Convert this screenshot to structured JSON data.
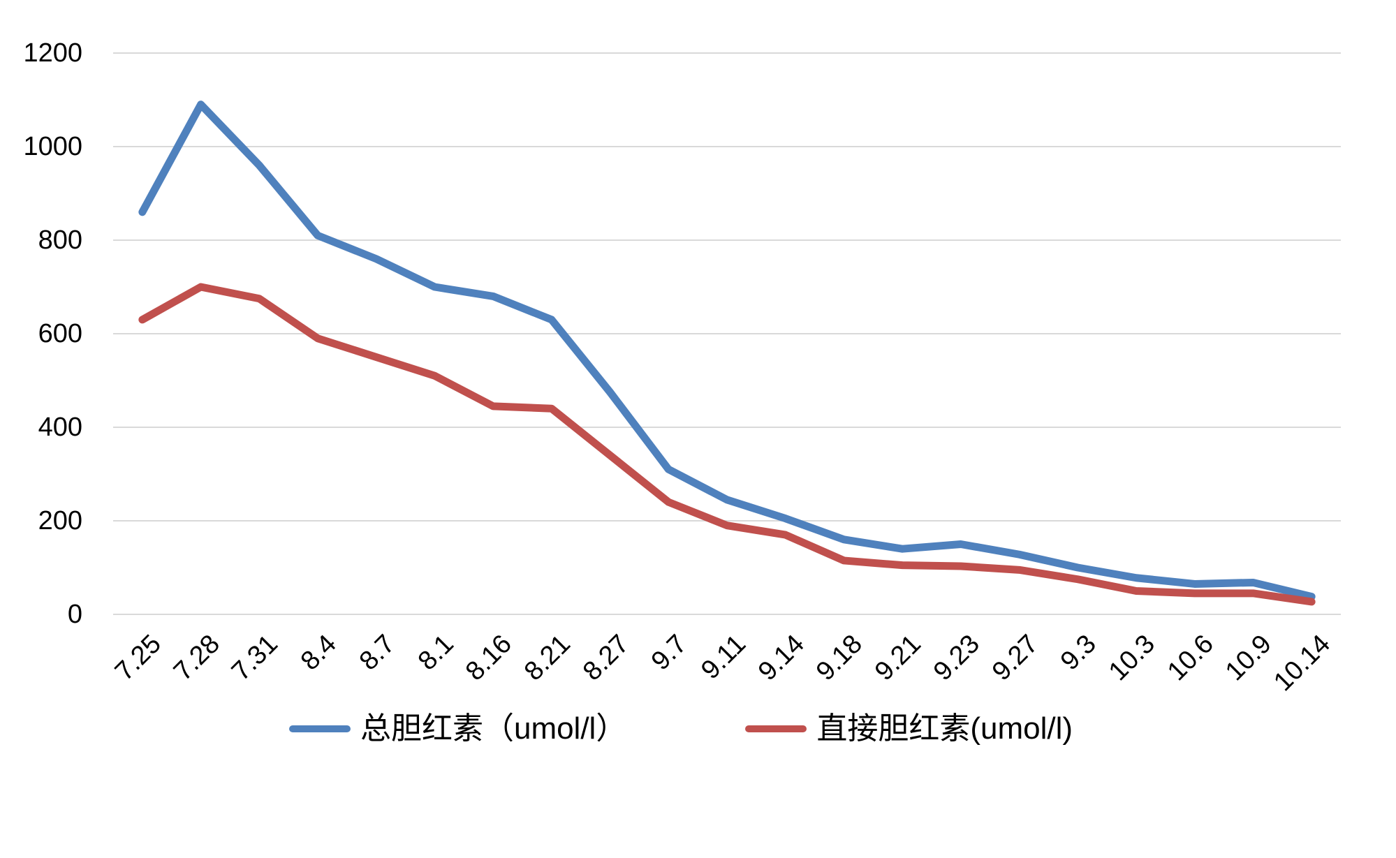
{
  "chart_data": {
    "type": "line",
    "title": "",
    "xlabel": "",
    "ylabel": "",
    "categories": [
      "7.25",
      "7.28",
      "7.31",
      "8.4",
      "8.7",
      "8.1",
      "8.16",
      "8.21",
      "8.27",
      "9.7",
      "9.11",
      "9.14",
      "9.18",
      "9.21",
      "9.23",
      "9.27",
      "9.3",
      "10.3",
      "10.6",
      "10.9",
      "10.14"
    ],
    "series": [
      {
        "name": "总胆红素（umol/l）",
        "color": "#4F81BD",
        "values": [
          860,
          1090,
          960,
          810,
          760,
          700,
          680,
          630,
          475,
          310,
          245,
          205,
          160,
          140,
          150,
          128,
          100,
          78,
          65,
          68,
          38
        ]
      },
      {
        "name": "直接胆红素(umol/l)",
        "color": "#C0504D",
        "values": [
          630,
          700,
          675,
          590,
          550,
          510,
          445,
          440,
          340,
          240,
          190,
          170,
          115,
          105,
          103,
          95,
          75,
          50,
          45,
          45,
          27
        ]
      }
    ],
    "ylim": [
      0,
      1200
    ],
    "yticks": [
      1200,
      1000,
      800,
      600,
      400,
      200,
      0
    ],
    "grid": true,
    "gridline_color": "#D9D9D9",
    "background_color": "#FFFFFF",
    "text_color": "#000000",
    "legend_position": "bottom"
  }
}
